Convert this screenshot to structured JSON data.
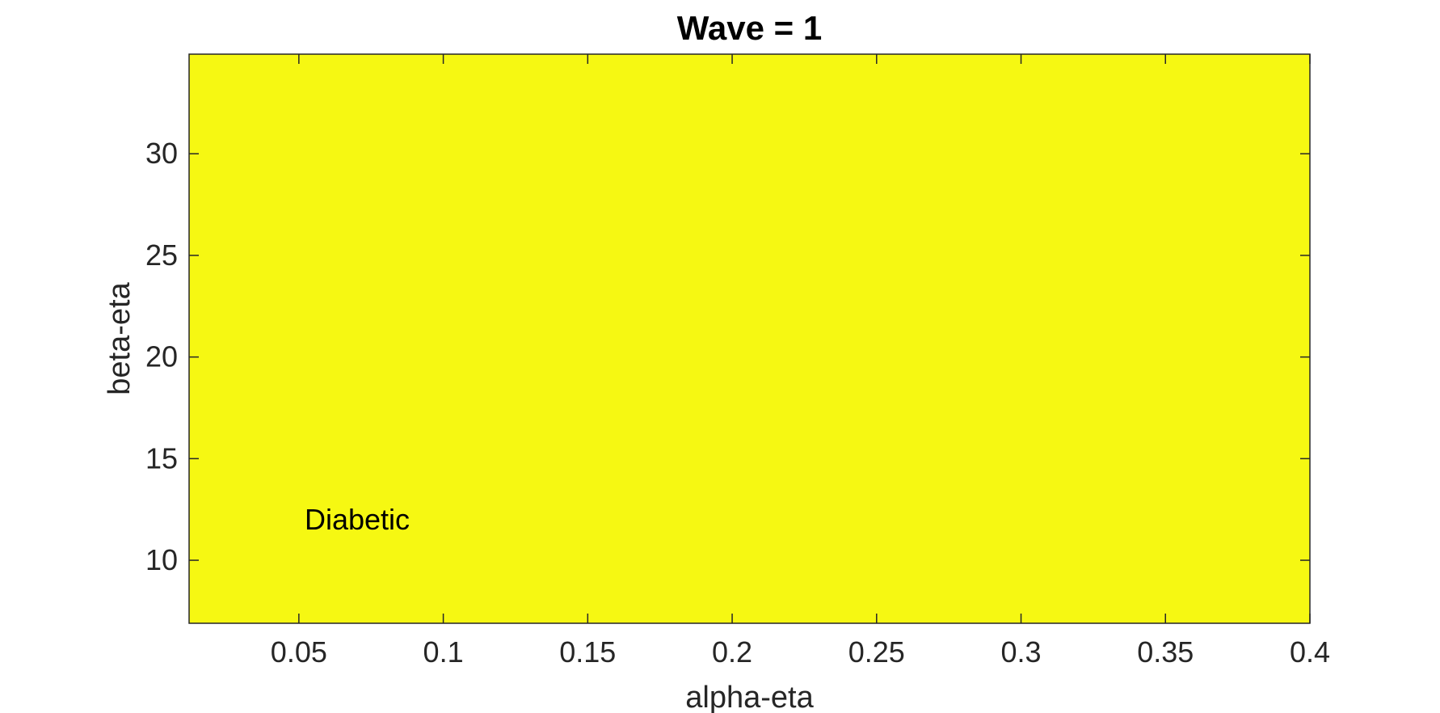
{
  "chart_data": {
    "type": "heatmap",
    "title": "Wave = 1",
    "xlabel": "alpha-eta",
    "ylabel": "beta-eta",
    "xlim": [
      0.012,
      0.4
    ],
    "ylim": [
      6.9,
      34.9
    ],
    "x_ticks": [
      0.05,
      0.1,
      0.15,
      0.2,
      0.25,
      0.3,
      0.35,
      0.4
    ],
    "x_tick_labels": [
      "0.05",
      "0.1",
      "0.15",
      "0.2",
      "0.25",
      "0.3",
      "0.35",
      "0.4"
    ],
    "y_ticks": [
      10,
      15,
      20,
      25,
      30
    ],
    "y_tick_labels": [
      "10",
      "15",
      "20",
      "25",
      "30"
    ],
    "regions": [
      {
        "label": "Diabetic",
        "color": "#f6f812",
        "x_range": [
          0.012,
          0.4
        ],
        "y_range": [
          6.9,
          34.9
        ],
        "label_at": {
          "x": 0.052,
          "y": 11.9
        }
      }
    ],
    "grid": false,
    "colors": {
      "axis": "#262626",
      "background": "#ffffff",
      "fill": "#f6f812"
    }
  }
}
